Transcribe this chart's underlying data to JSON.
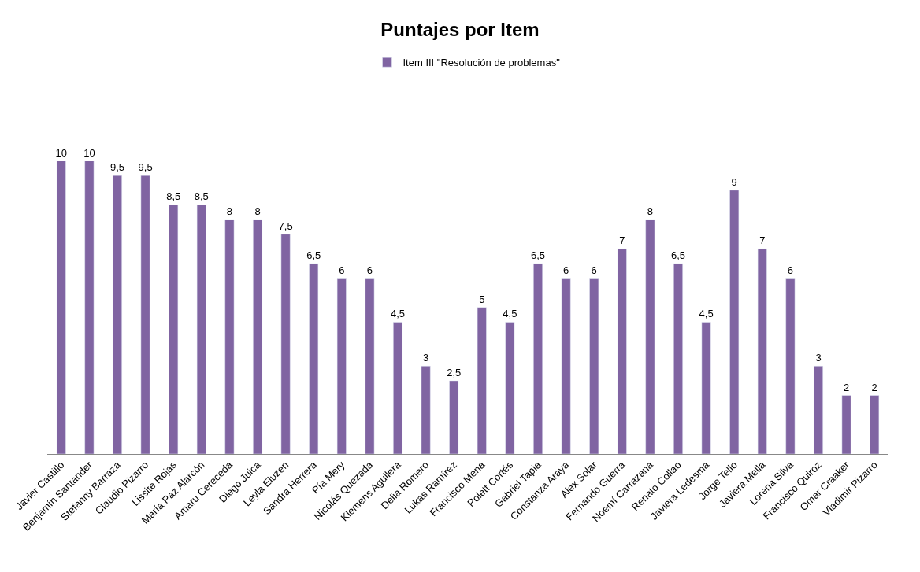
{
  "chart_data": {
    "type": "bar",
    "title": "Puntajes por Item",
    "legend": "top",
    "tick_labels": "x",
    "categories": [
      "Javier Castillo",
      "Benjamín Santander",
      "Stefanny Barraza",
      "Claudio Pizarro",
      "Lissite Rojas",
      "María Paz Alarcón",
      "Amaru Cereceda",
      "Diego Juica",
      "Leyla Eluzen",
      "Sandra Herrera",
      "Pía Mery",
      "Nicolás Quezada",
      "Klemens Aguilera",
      "Delia Romero",
      "Lukas Ramírez",
      "Francisco Mena",
      "Polett Cortés",
      "Gabriel Tapia",
      "Constanza Araya",
      "Alex Solar",
      "Fernando Guerra",
      "Noemí Carrazana",
      "Renato Collao",
      "Javiera Ledesma",
      "Jorge Tello",
      "Javiera Mella",
      "Lorena Silva",
      "Francisco Quiroz",
      "Omar Craaker",
      "Vladimir Pizarro"
    ],
    "series": [
      {
        "name": "Item III \"Resolución de problemas\"",
        "color": "#8064a2",
        "values": [
          10,
          10,
          9.5,
          9.5,
          8.5,
          8.5,
          8,
          8,
          7.5,
          6.5,
          6,
          6,
          4.5,
          3,
          2.5,
          5,
          4.5,
          6.5,
          6,
          6,
          7,
          8,
          6.5,
          4.5,
          9,
          7,
          6,
          3,
          2,
          2
        ],
        "value_labels": [
          "10",
          "10",
          "9,5",
          "9,5",
          "8,5",
          "8,5",
          "8",
          "8",
          "7,5",
          "6,5",
          "6",
          "6",
          "4,5",
          "3",
          "2,5",
          "5",
          "4,5",
          "6,5",
          "6",
          "6",
          "7",
          "8",
          "6,5",
          "4,5",
          "9",
          "7",
          "6",
          "3",
          "2",
          "2"
        ]
      }
    ]
  }
}
